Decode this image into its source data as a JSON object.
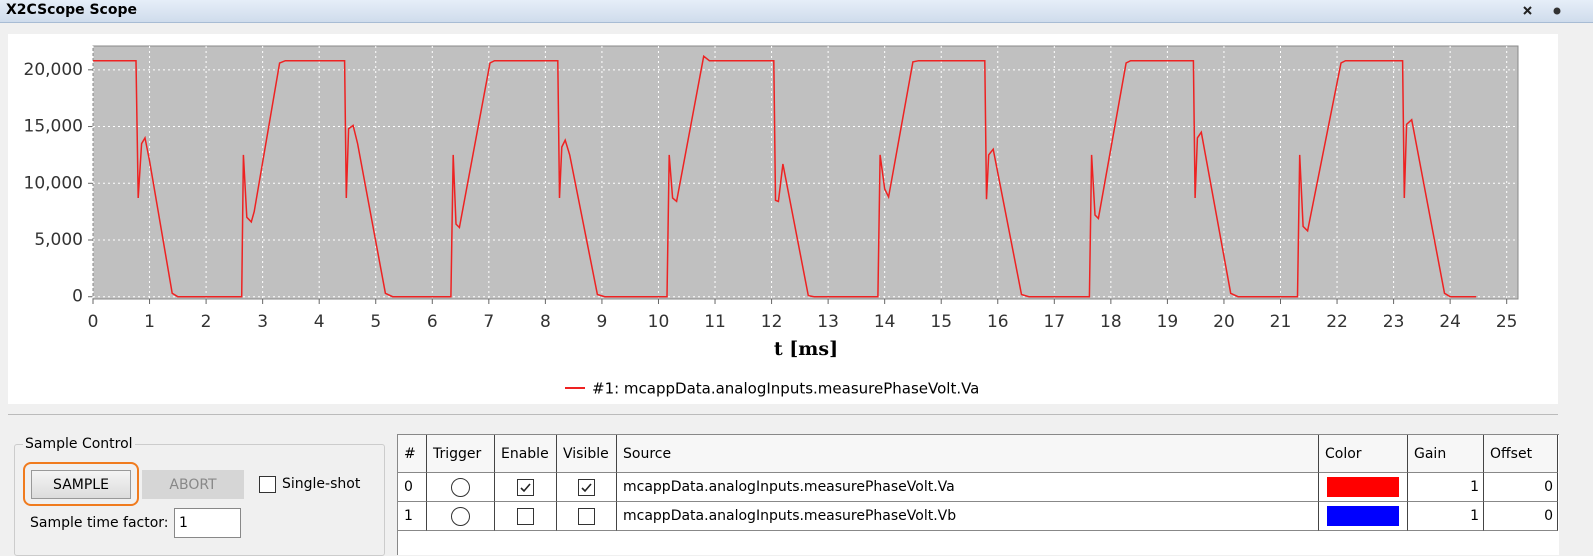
{
  "window": {
    "title": "X2CScope Scope"
  },
  "chart_data": {
    "type": "line",
    "x_label": "t [ms]",
    "xlim": [
      0,
      25.2
    ],
    "ylim": [
      -200,
      22100
    ],
    "xticks": [
      0,
      1,
      2,
      3,
      4,
      5,
      6,
      7,
      8,
      9,
      10,
      11,
      12,
      13,
      14,
      15,
      16,
      17,
      18,
      19,
      20,
      21,
      22,
      23,
      24,
      25
    ],
    "yticks": [
      0,
      {
        "value": 5000,
        "label": "5,000"
      },
      {
        "value": 10000,
        "label": "10,000"
      },
      {
        "value": 15000,
        "label": "15,000"
      },
      {
        "value": 20000,
        "label": "20,000"
      }
    ],
    "grid": true,
    "x": [
      0,
      0.76,
      0.8,
      0.86,
      0.92,
      1.0,
      1.4,
      1.5,
      2.63,
      2.66,
      2.72,
      2.8,
      2.85,
      3.3,
      3.4,
      4.45,
      4.48,
      4.52,
      4.6,
      4.68,
      5.17,
      5.3,
      6.33,
      6.37,
      6.42,
      6.48,
      7.02,
      7.1,
      8.22,
      8.25,
      8.29,
      8.35,
      8.43,
      8.92,
      9.05,
      10.15,
      10.19,
      10.25,
      10.32,
      10.8,
      10.9,
      12.04,
      12.07,
      12.12,
      12.2,
      12.65,
      12.75,
      13.88,
      13.92,
      14.0,
      14.07,
      14.5,
      14.6,
      15.77,
      15.8,
      15.84,
      15.92,
      16.42,
      16.55,
      17.62,
      17.66,
      17.72,
      17.78,
      18.27,
      18.35,
      19.46,
      19.49,
      19.53,
      19.6,
      20.12,
      20.25,
      21.3,
      21.34,
      21.4,
      21.48,
      22.07,
      22.15,
      23.16,
      23.19,
      23.23,
      23.32,
      23.9,
      24.0,
      24.46
    ],
    "series": [
      {
        "name": "#1: mcappData.analogInputs.measurePhaseVolt.Va",
        "color": "#ee2222",
        "values": [
          20800,
          20800,
          8700,
          13500,
          14000,
          12000,
          300,
          0,
          0,
          12500,
          7000,
          6600,
          7500,
          20600,
          20800,
          20800,
          8700,
          14800,
          15100,
          13500,
          300,
          0,
          0,
          12500,
          6400,
          6100,
          20600,
          20800,
          20800,
          8700,
          13200,
          13800,
          12500,
          200,
          0,
          0,
          12500,
          8700,
          8400,
          21200,
          20800,
          20800,
          8500,
          8400,
          11700,
          100,
          0,
          0,
          12500,
          9500,
          8800,
          20700,
          20800,
          20800,
          8600,
          12500,
          13000,
          200,
          0,
          0,
          12500,
          7200,
          6900,
          20600,
          20800,
          20800,
          8700,
          14000,
          14500,
          300,
          0,
          0,
          12500,
          6200,
          5800,
          20600,
          20800,
          20800,
          8700,
          15200,
          15600,
          300,
          0,
          0
        ]
      }
    ]
  },
  "sample_control": {
    "title": "Sample Control",
    "sample": "SAMPLE",
    "abort": "ABORT",
    "single_shot": "Single-shot",
    "single_shot_checked": false,
    "time_factor_label": "Sample time factor:",
    "time_factor": "1"
  },
  "table": {
    "columns": [
      "#",
      "Trigger",
      "Enable",
      "Visible",
      "Source",
      "Color",
      "Gain",
      "Offset"
    ],
    "rows": [
      {
        "index": 0,
        "trigger": false,
        "enable": true,
        "visible": true,
        "source": "mcappData.analogInputs.measurePhaseVolt.Va",
        "color": "#ff0000",
        "gain": 1,
        "offset": 0
      },
      {
        "index": 1,
        "trigger": false,
        "enable": false,
        "visible": false,
        "source": "mcappData.analogInputs.measurePhaseVolt.Vb",
        "color": "#0000ff",
        "gain": 1,
        "offset": 0
      }
    ]
  }
}
